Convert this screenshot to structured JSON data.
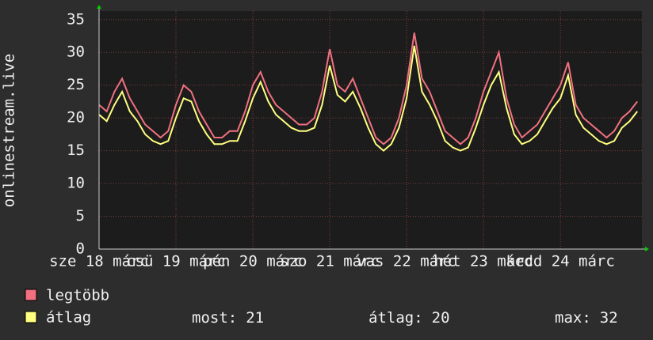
{
  "chart_data": {
    "type": "line",
    "ylabel": "onlinestream.live",
    "xlim": [
      18,
      25.06
    ],
    "ylim": [
      0,
      36.3
    ],
    "yticks": [
      0,
      5,
      10,
      15,
      20,
      25,
      30,
      35
    ],
    "xticks": [
      {
        "value": 18,
        "label": "sze 18 márc"
      },
      {
        "value": 19,
        "label": "csü 19 márc"
      },
      {
        "value": 20,
        "label": "pén 20 márc"
      },
      {
        "value": 21,
        "label": "szo 21 márc"
      },
      {
        "value": 22,
        "label": "vas 22 márc"
      },
      {
        "value": 23,
        "label": "hét 23 márc"
      },
      {
        "value": 24,
        "label": "kedd 24 márc"
      }
    ],
    "grid": true,
    "x": [
      18.0,
      18.1,
      18.2,
      18.3,
      18.4,
      18.5,
      18.6,
      18.7,
      18.8,
      18.9,
      19.0,
      19.1,
      19.2,
      19.3,
      19.4,
      19.5,
      19.6,
      19.7,
      19.8,
      19.9,
      20.0,
      20.1,
      20.2,
      20.3,
      20.4,
      20.5,
      20.6,
      20.7,
      20.8,
      20.9,
      21.0,
      21.1,
      21.2,
      21.3,
      21.4,
      21.5,
      21.6,
      21.7,
      21.8,
      21.9,
      22.0,
      22.1,
      22.2,
      22.3,
      22.4,
      22.5,
      22.6,
      22.7,
      22.8,
      22.9,
      23.0,
      23.1,
      23.2,
      23.3,
      23.4,
      23.5,
      23.6,
      23.7,
      23.8,
      23.9,
      24.0,
      24.1,
      24.2,
      24.3,
      24.4,
      24.5,
      24.6,
      24.7,
      24.8,
      24.9,
      25.0
    ],
    "series": [
      {
        "name": "legtöbb",
        "color": "#f07080",
        "values": [
          22,
          21,
          24,
          26,
          23,
          21,
          19,
          18,
          17,
          18,
          22,
          25,
          24,
          21,
          19,
          17,
          17,
          18,
          18,
          21,
          25,
          27,
          24,
          22,
          21,
          20,
          19,
          19,
          20,
          24,
          30.5,
          25,
          24,
          26,
          23,
          20,
          17,
          16,
          17,
          20,
          25,
          33,
          26,
          24,
          21,
          18,
          17,
          16,
          17,
          20,
          24,
          27,
          30,
          23,
          19,
          17,
          18,
          19,
          21,
          23,
          25,
          28.5,
          22,
          20,
          19,
          18,
          17,
          18,
          20,
          21,
          22.5
        ]
      },
      {
        "name": "átlag",
        "color": "#ffff80",
        "values": [
          20.5,
          19.5,
          22,
          24,
          21,
          19.5,
          17.5,
          16.5,
          16,
          16.5,
          20,
          23,
          22.5,
          19.5,
          17.5,
          16,
          16,
          16.5,
          16.5,
          19.5,
          23,
          25.5,
          22.5,
          20.5,
          19.5,
          18.5,
          18,
          18,
          18.5,
          22,
          28,
          23.5,
          22.5,
          24,
          21.5,
          18.5,
          16,
          15,
          16,
          18.5,
          23,
          31,
          24,
          22,
          19.5,
          16.5,
          15.5,
          15,
          15.5,
          18.5,
          22,
          25,
          27,
          21.5,
          17.5,
          16,
          16.5,
          17.5,
          19.5,
          21.5,
          23,
          26.5,
          20.5,
          18.5,
          17.5,
          16.5,
          16,
          16.5,
          18.5,
          19.5,
          21
        ]
      }
    ],
    "stats": [
      {
        "label": "most:",
        "value": 21
      },
      {
        "label": "átlag:",
        "value": 20
      },
      {
        "label": "max:",
        "value": 32
      }
    ]
  }
}
